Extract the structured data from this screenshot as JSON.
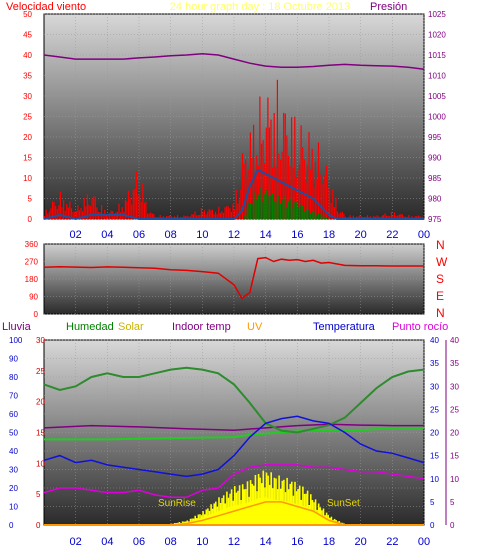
{
  "header": {
    "title": "24 hour graph day : 18 Octubre 2013",
    "left_label": "Velocidad viento",
    "right_label": "Presión"
  },
  "bottom_legend": {
    "lluvia": "Lluvia",
    "humedad": "Humedad",
    "solar": "Solar",
    "indoor": "Indoor temp",
    "uv": "UV",
    "temperatura": "Temperatura",
    "punto_rocio": "Punto rocío"
  },
  "annotations": {
    "sunrise": "SunRise",
    "sunset": "SunSet"
  },
  "directions": [
    "N",
    "W",
    "S",
    "E",
    "N"
  ],
  "colors": {
    "wind": "#ff0000",
    "gust": "#1f4fa0",
    "avg": "#008000",
    "pressure": "#800080",
    "direction": "#e00000",
    "humidity": "#2e8b2e",
    "indoor": "#22cc22",
    "temp": "#1010dd",
    "dew": "#dd00dd",
    "solar": "#ffff00",
    "uv": "#ff9900",
    "rain": "#6b2a8a"
  },
  "chart_data": [
    {
      "type": "bar",
      "name": "wind-pressure",
      "x_ticks": [
        "02",
        "04",
        "06",
        "08",
        "10",
        "12",
        "14",
        "16",
        "18",
        "20",
        "22",
        "00"
      ],
      "left_axis": {
        "label": "Velocidad viento",
        "ylim": [
          0,
          50
        ],
        "ticks": [
          0,
          5,
          10,
          15,
          20,
          25,
          30,
          35,
          40,
          45,
          50
        ]
      },
      "right_axis": {
        "label": "Presión",
        "ylim": [
          975,
          1025
        ],
        "ticks": [
          975,
          980,
          985,
          990,
          995,
          1000,
          1005,
          1010,
          1015,
          1020,
          1025
        ]
      },
      "pressure": [
        [
          0,
          1015
        ],
        [
          1,
          1014.5
        ],
        [
          2,
          1014
        ],
        [
          3,
          1014
        ],
        [
          4,
          1014
        ],
        [
          5,
          1014
        ],
        [
          6,
          1014.3
        ],
        [
          7,
          1014.5
        ],
        [
          8,
          1014.8
        ],
        [
          9,
          1015
        ],
        [
          10,
          1015.3
        ],
        [
          11,
          1015
        ],
        [
          12,
          1014
        ],
        [
          13,
          1013
        ],
        [
          14,
          1012.3
        ],
        [
          15,
          1012
        ],
        [
          16,
          1012
        ],
        [
          17,
          1012.2
        ],
        [
          18,
          1012.5
        ],
        [
          19,
          1012.7
        ],
        [
          20,
          1012.5
        ],
        [
          21,
          1012.4
        ],
        [
          22,
          1012.3
        ],
        [
          23,
          1012
        ],
        [
          24,
          1011.5
        ]
      ],
      "wind_max_envelope": [
        [
          0,
          2
        ],
        [
          0.5,
          5
        ],
        [
          1,
          7
        ],
        [
          1.5,
          5
        ],
        [
          2,
          3
        ],
        [
          2.5,
          6
        ],
        [
          3,
          8
        ],
        [
          3.5,
          4
        ],
        [
          4,
          2
        ],
        [
          4.5,
          3
        ],
        [
          5,
          5
        ],
        [
          5.5,
          10
        ],
        [
          6,
          14
        ],
        [
          6.5,
          3
        ],
        [
          7,
          1
        ],
        [
          8,
          1
        ],
        [
          9,
          1
        ],
        [
          10,
          3
        ],
        [
          11,
          3
        ],
        [
          12,
          5
        ],
        [
          12.5,
          18
        ],
        [
          13,
          25
        ],
        [
          13.5,
          30
        ],
        [
          14,
          34
        ],
        [
          14.5,
          36
        ],
        [
          15,
          33
        ],
        [
          15.5,
          30
        ],
        [
          16,
          26
        ],
        [
          16.5,
          24
        ],
        [
          17,
          22
        ],
        [
          17.5,
          18
        ],
        [
          18,
          12
        ],
        [
          18.5,
          4
        ],
        [
          19,
          1
        ],
        [
          20,
          1
        ],
        [
          21,
          1
        ],
        [
          22,
          2
        ],
        [
          23,
          1
        ],
        [
          24,
          1
        ]
      ],
      "gust_avg": [
        [
          0,
          0
        ],
        [
          1,
          1
        ],
        [
          2,
          0
        ],
        [
          3,
          1
        ],
        [
          4,
          1
        ],
        [
          5,
          1
        ],
        [
          6,
          0
        ],
        [
          7,
          0
        ],
        [
          12,
          0
        ],
        [
          12.5,
          2
        ],
        [
          13,
          8
        ],
        [
          13.5,
          12
        ],
        [
          14,
          11
        ],
        [
          14.5,
          10
        ],
        [
          15,
          9
        ],
        [
          15.5,
          8
        ],
        [
          16,
          7
        ],
        [
          16.5,
          6
        ],
        [
          17,
          5
        ],
        [
          17.5,
          3
        ],
        [
          18,
          1
        ],
        [
          18.5,
          0
        ],
        [
          24,
          0
        ]
      ],
      "avg_speed": [
        [
          12.5,
          0
        ],
        [
          13,
          5
        ],
        [
          13.5,
          8
        ],
        [
          14,
          7
        ],
        [
          14.5,
          6
        ],
        [
          15,
          6
        ],
        [
          15.5,
          5
        ],
        [
          16,
          4
        ],
        [
          16.5,
          3
        ],
        [
          17,
          2
        ],
        [
          17.5,
          1
        ],
        [
          18,
          0
        ]
      ]
    },
    {
      "type": "line",
      "name": "wind-direction",
      "ylim": [
        0,
        360
      ],
      "ticks": [
        0,
        90,
        180,
        270,
        360
      ],
      "direction": [
        [
          0,
          240
        ],
        [
          1,
          243
        ],
        [
          2,
          241
        ],
        [
          3,
          239
        ],
        [
          4,
          242
        ],
        [
          5,
          240
        ],
        [
          6,
          238
        ],
        [
          7,
          235
        ],
        [
          8,
          228
        ],
        [
          9,
          224
        ],
        [
          10,
          218
        ],
        [
          11,
          210
        ],
        [
          12,
          150
        ],
        [
          12.5,
          80
        ],
        [
          13,
          110
        ],
        [
          13.5,
          285
        ],
        [
          14,
          290
        ],
        [
          14.5,
          270
        ],
        [
          15,
          282
        ],
        [
          15.5,
          276
        ],
        [
          16,
          280
        ],
        [
          16.5,
          270
        ],
        [
          17,
          276
        ],
        [
          17.5,
          262
        ],
        [
          18,
          265
        ],
        [
          19,
          250
        ],
        [
          20,
          248
        ],
        [
          21,
          248
        ],
        [
          22,
          247
        ],
        [
          23,
          247
        ],
        [
          24,
          247
        ]
      ]
    },
    {
      "type": "line",
      "name": "temp-humidity-solar",
      "far_left_axis": {
        "label": "Lluvia",
        "ylim": [
          0,
          100
        ],
        "ticks": [
          0,
          10,
          20,
          30,
          40,
          50,
          60,
          70,
          80,
          90,
          100
        ]
      },
      "left_axis": {
        "label": "Solar",
        "ylim": [
          0,
          30
        ],
        "ticks": [
          0,
          5,
          10,
          15,
          20,
          25,
          30
        ]
      },
      "right_axis": {
        "label": "Temperatura",
        "ylim": [
          0,
          40
        ],
        "ticks": [
          0,
          5,
          10,
          15,
          20,
          25,
          30,
          35,
          40
        ]
      },
      "humidity": [
        [
          0,
          76
        ],
        [
          1,
          73
        ],
        [
          2,
          75
        ],
        [
          3,
          80
        ],
        [
          4,
          82
        ],
        [
          5,
          80
        ],
        [
          6,
          80
        ],
        [
          7,
          82
        ],
        [
          8,
          84
        ],
        [
          9,
          85
        ],
        [
          10,
          84
        ],
        [
          11,
          82
        ],
        [
          12,
          76
        ],
        [
          13,
          66
        ],
        [
          14,
          55
        ],
        [
          15,
          51
        ],
        [
          16,
          50
        ],
        [
          17,
          52
        ],
        [
          18,
          54
        ],
        [
          19,
          58
        ],
        [
          20,
          66
        ],
        [
          21,
          74
        ],
        [
          22,
          80
        ],
        [
          23,
          83
        ],
        [
          24,
          84
        ]
      ],
      "temperature": [
        [
          0,
          14
        ],
        [
          1,
          15
        ],
        [
          2,
          13.5
        ],
        [
          3,
          14
        ],
        [
          4,
          13
        ],
        [
          5,
          12.5
        ],
        [
          6,
          12
        ],
        [
          7,
          11.5
        ],
        [
          8,
          11
        ],
        [
          9,
          10.5
        ],
        [
          10,
          11
        ],
        [
          11,
          12
        ],
        [
          12,
          15
        ],
        [
          13,
          19
        ],
        [
          14,
          22
        ],
        [
          15,
          23
        ],
        [
          16,
          23.5
        ],
        [
          17,
          22.5
        ],
        [
          18,
          22
        ],
        [
          19,
          20
        ],
        [
          20,
          17.5
        ],
        [
          21,
          16
        ],
        [
          22,
          15.5
        ],
        [
          23,
          14.5
        ],
        [
          24,
          13.5
        ]
      ],
      "dew_point": [
        [
          0,
          7
        ],
        [
          1,
          8
        ],
        [
          2,
          8
        ],
        [
          3,
          7.5
        ],
        [
          4,
          7
        ],
        [
          5,
          7
        ],
        [
          6,
          7.5
        ],
        [
          7,
          6.5
        ],
        [
          8,
          6
        ],
        [
          9,
          6
        ],
        [
          10,
          7.5
        ],
        [
          11,
          8
        ],
        [
          12,
          11
        ],
        [
          13,
          12.5
        ],
        [
          14,
          13
        ],
        [
          15,
          13
        ],
        [
          16,
          13
        ],
        [
          17,
          12.5
        ],
        [
          18,
          12.5
        ],
        [
          19,
          12
        ],
        [
          20,
          11.5
        ],
        [
          21,
          11.5
        ],
        [
          22,
          11
        ],
        [
          23,
          10.5
        ],
        [
          24,
          10
        ]
      ],
      "indoor_temp": [
        [
          0,
          18.5
        ],
        [
          4,
          18.5
        ],
        [
          8,
          18.8
        ],
        [
          12,
          19
        ],
        [
          13,
          19.5
        ],
        [
          15,
          20
        ],
        [
          17,
          20.5
        ],
        [
          20,
          20.5
        ],
        [
          22,
          21
        ],
        [
          24,
          21
        ]
      ],
      "outdoor_ref": [
        [
          0,
          21
        ],
        [
          3,
          21.5
        ],
        [
          6,
          21.2
        ],
        [
          9,
          20.8
        ],
        [
          12,
          20.5
        ],
        [
          14,
          21
        ],
        [
          16,
          21.5
        ],
        [
          18,
          21.8
        ],
        [
          20,
          21.6
        ],
        [
          22,
          21.5
        ],
        [
          24,
          21.5
        ]
      ],
      "solar": [
        [
          7,
          0
        ],
        [
          8,
          0.3
        ],
        [
          9,
          1
        ],
        [
          10,
          3
        ],
        [
          11,
          6
        ],
        [
          12,
          8.5
        ],
        [
          12.5,
          9
        ],
        [
          13,
          10
        ],
        [
          13.5,
          11.5
        ],
        [
          14,
          12
        ],
        [
          14.5,
          11
        ],
        [
          15,
          10.5
        ],
        [
          15.5,
          10
        ],
        [
          16,
          9
        ],
        [
          16.5,
          8
        ],
        [
          17,
          6
        ],
        [
          17.5,
          4
        ],
        [
          18,
          2
        ],
        [
          18.5,
          1
        ],
        [
          19,
          0.2
        ],
        [
          19.5,
          0
        ]
      ],
      "uv": [
        [
          8,
          0
        ],
        [
          9,
          0.3
        ],
        [
          10,
          1
        ],
        [
          11,
          2
        ],
        [
          12,
          3
        ],
        [
          13,
          4
        ],
        [
          14,
          5
        ],
        [
          15,
          5
        ],
        [
          16,
          4
        ],
        [
          17,
          3
        ],
        [
          18,
          1
        ],
        [
          19,
          0
        ]
      ],
      "rain": [
        [
          0,
          0
        ],
        [
          24,
          0
        ]
      ]
    }
  ]
}
